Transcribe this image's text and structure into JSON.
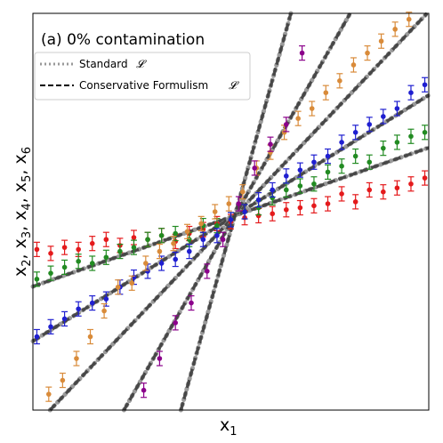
{
  "chart_data": {
    "type": "scatter",
    "title": "(a) 0% contamination",
    "xlabel": "x",
    "xlabel_sub": "1",
    "ylabel": [
      {
        "t": "x",
        "s": "2"
      },
      {
        "t": ", x",
        "s": "3"
      },
      {
        "t": ", x",
        "s": "4"
      },
      {
        "t": ", x",
        "s": "5"
      },
      {
        "t": ", x",
        "s": "6"
      }
    ],
    "xlim": [
      0,
      1
    ],
    "ylim": [
      0,
      1
    ],
    "grid": false,
    "legend": {
      "placement": "top-left",
      "entries": [
        {
          "label": "Standard",
          "symbol": "𝓛",
          "style": "dotted",
          "color": "#999999"
        },
        {
          "label": "Conservative Formulism",
          "symbol": "𝓛",
          "style": "dashed",
          "color": "#000000"
        }
      ]
    },
    "center": [
      0.51,
      0.49
    ],
    "series": [
      {
        "color": "#e41a1c",
        "slope": 0.35,
        "err": 0.018,
        "x": [
          0.01,
          0.045,
          0.08,
          0.115,
          0.15,
          0.185,
          0.22,
          0.255,
          0.29,
          0.325,
          0.36,
          0.395,
          0.43,
          0.465,
          0.5,
          0.535,
          0.57,
          0.605,
          0.64,
          0.675,
          0.71,
          0.745,
          0.78,
          0.815,
          0.85,
          0.885,
          0.92,
          0.955,
          0.99
        ],
        "y": [
          0.405,
          0.395,
          0.41,
          0.405,
          0.42,
          0.43,
          0.415,
          0.435,
          0.43,
          0.44,
          0.425,
          0.445,
          0.455,
          0.47,
          0.475,
          0.485,
          0.49,
          0.495,
          0.505,
          0.51,
          0.515,
          0.52,
          0.545,
          0.525,
          0.555,
          0.55,
          0.56,
          0.57,
          0.585
        ]
      },
      {
        "color": "#228b22",
        "slope": 0.62,
        "x": [
          0.01,
          0.045,
          0.08,
          0.115,
          0.15,
          0.185,
          0.22,
          0.255,
          0.29,
          0.325,
          0.36,
          0.395,
          0.43,
          0.465,
          0.5,
          0.535,
          0.57,
          0.605,
          0.64,
          0.675,
          0.71,
          0.745,
          0.78,
          0.815,
          0.85,
          0.885,
          0.92,
          0.955,
          0.99
        ],
        "y": [
          0.33,
          0.345,
          0.36,
          0.375,
          0.37,
          0.385,
          0.4,
          0.41,
          0.43,
          0.44,
          0.445,
          0.43,
          0.465,
          0.465,
          0.48,
          0.5,
          0.51,
          0.535,
          0.555,
          0.565,
          0.57,
          0.6,
          0.615,
          0.64,
          0.625,
          0.66,
          0.675,
          0.69,
          0.7
        ]
      },
      {
        "color": "#1f1fd0",
        "slope": 1.05,
        "x": [
          0.01,
          0.045,
          0.08,
          0.115,
          0.15,
          0.185,
          0.22,
          0.255,
          0.29,
          0.325,
          0.36,
          0.395,
          0.43,
          0.465,
          0.5,
          0.535,
          0.57,
          0.605,
          0.64,
          0.675,
          0.71,
          0.745,
          0.78,
          0.815,
          0.85,
          0.885,
          0.92,
          0.955,
          0.99
        ],
        "y": [
          0.185,
          0.21,
          0.23,
          0.255,
          0.27,
          0.28,
          0.31,
          0.335,
          0.35,
          0.37,
          0.38,
          0.4,
          0.43,
          0.44,
          0.48,
          0.5,
          0.53,
          0.555,
          0.59,
          0.605,
          0.625,
          0.64,
          0.675,
          0.7,
          0.72,
          0.74,
          0.76,
          0.8,
          0.82
        ]
      },
      {
        "color": "#d98b3a",
        "slope": 1.75,
        "x": [
          0.04,
          0.075,
          0.11,
          0.145,
          0.18,
          0.215,
          0.25,
          0.285,
          0.32,
          0.355,
          0.39,
          0.425,
          0.46,
          0.495,
          0.53,
          0.565,
          0.6,
          0.635,
          0.67,
          0.705,
          0.74,
          0.775,
          0.81,
          0.845,
          0.88,
          0.915,
          0.95
        ],
        "y": [
          0.04,
          0.075,
          0.13,
          0.185,
          0.25,
          0.31,
          0.32,
          0.37,
          0.4,
          0.42,
          0.45,
          0.47,
          0.5,
          0.52,
          0.55,
          0.61,
          0.65,
          0.7,
          0.735,
          0.76,
          0.8,
          0.83,
          0.87,
          0.9,
          0.93,
          0.96,
          0.985
        ]
      },
      {
        "color": "#8b008b",
        "slope": 3.6,
        "x": [
          0.28,
          0.32,
          0.36,
          0.4,
          0.44,
          0.48,
          0.52,
          0.56,
          0.6,
          0.64,
          0.68
        ],
        "y": [
          0.05,
          0.13,
          0.22,
          0.27,
          0.35,
          0.43,
          0.52,
          0.61,
          0.67,
          0.72,
          0.9
        ]
      }
    ]
  }
}
